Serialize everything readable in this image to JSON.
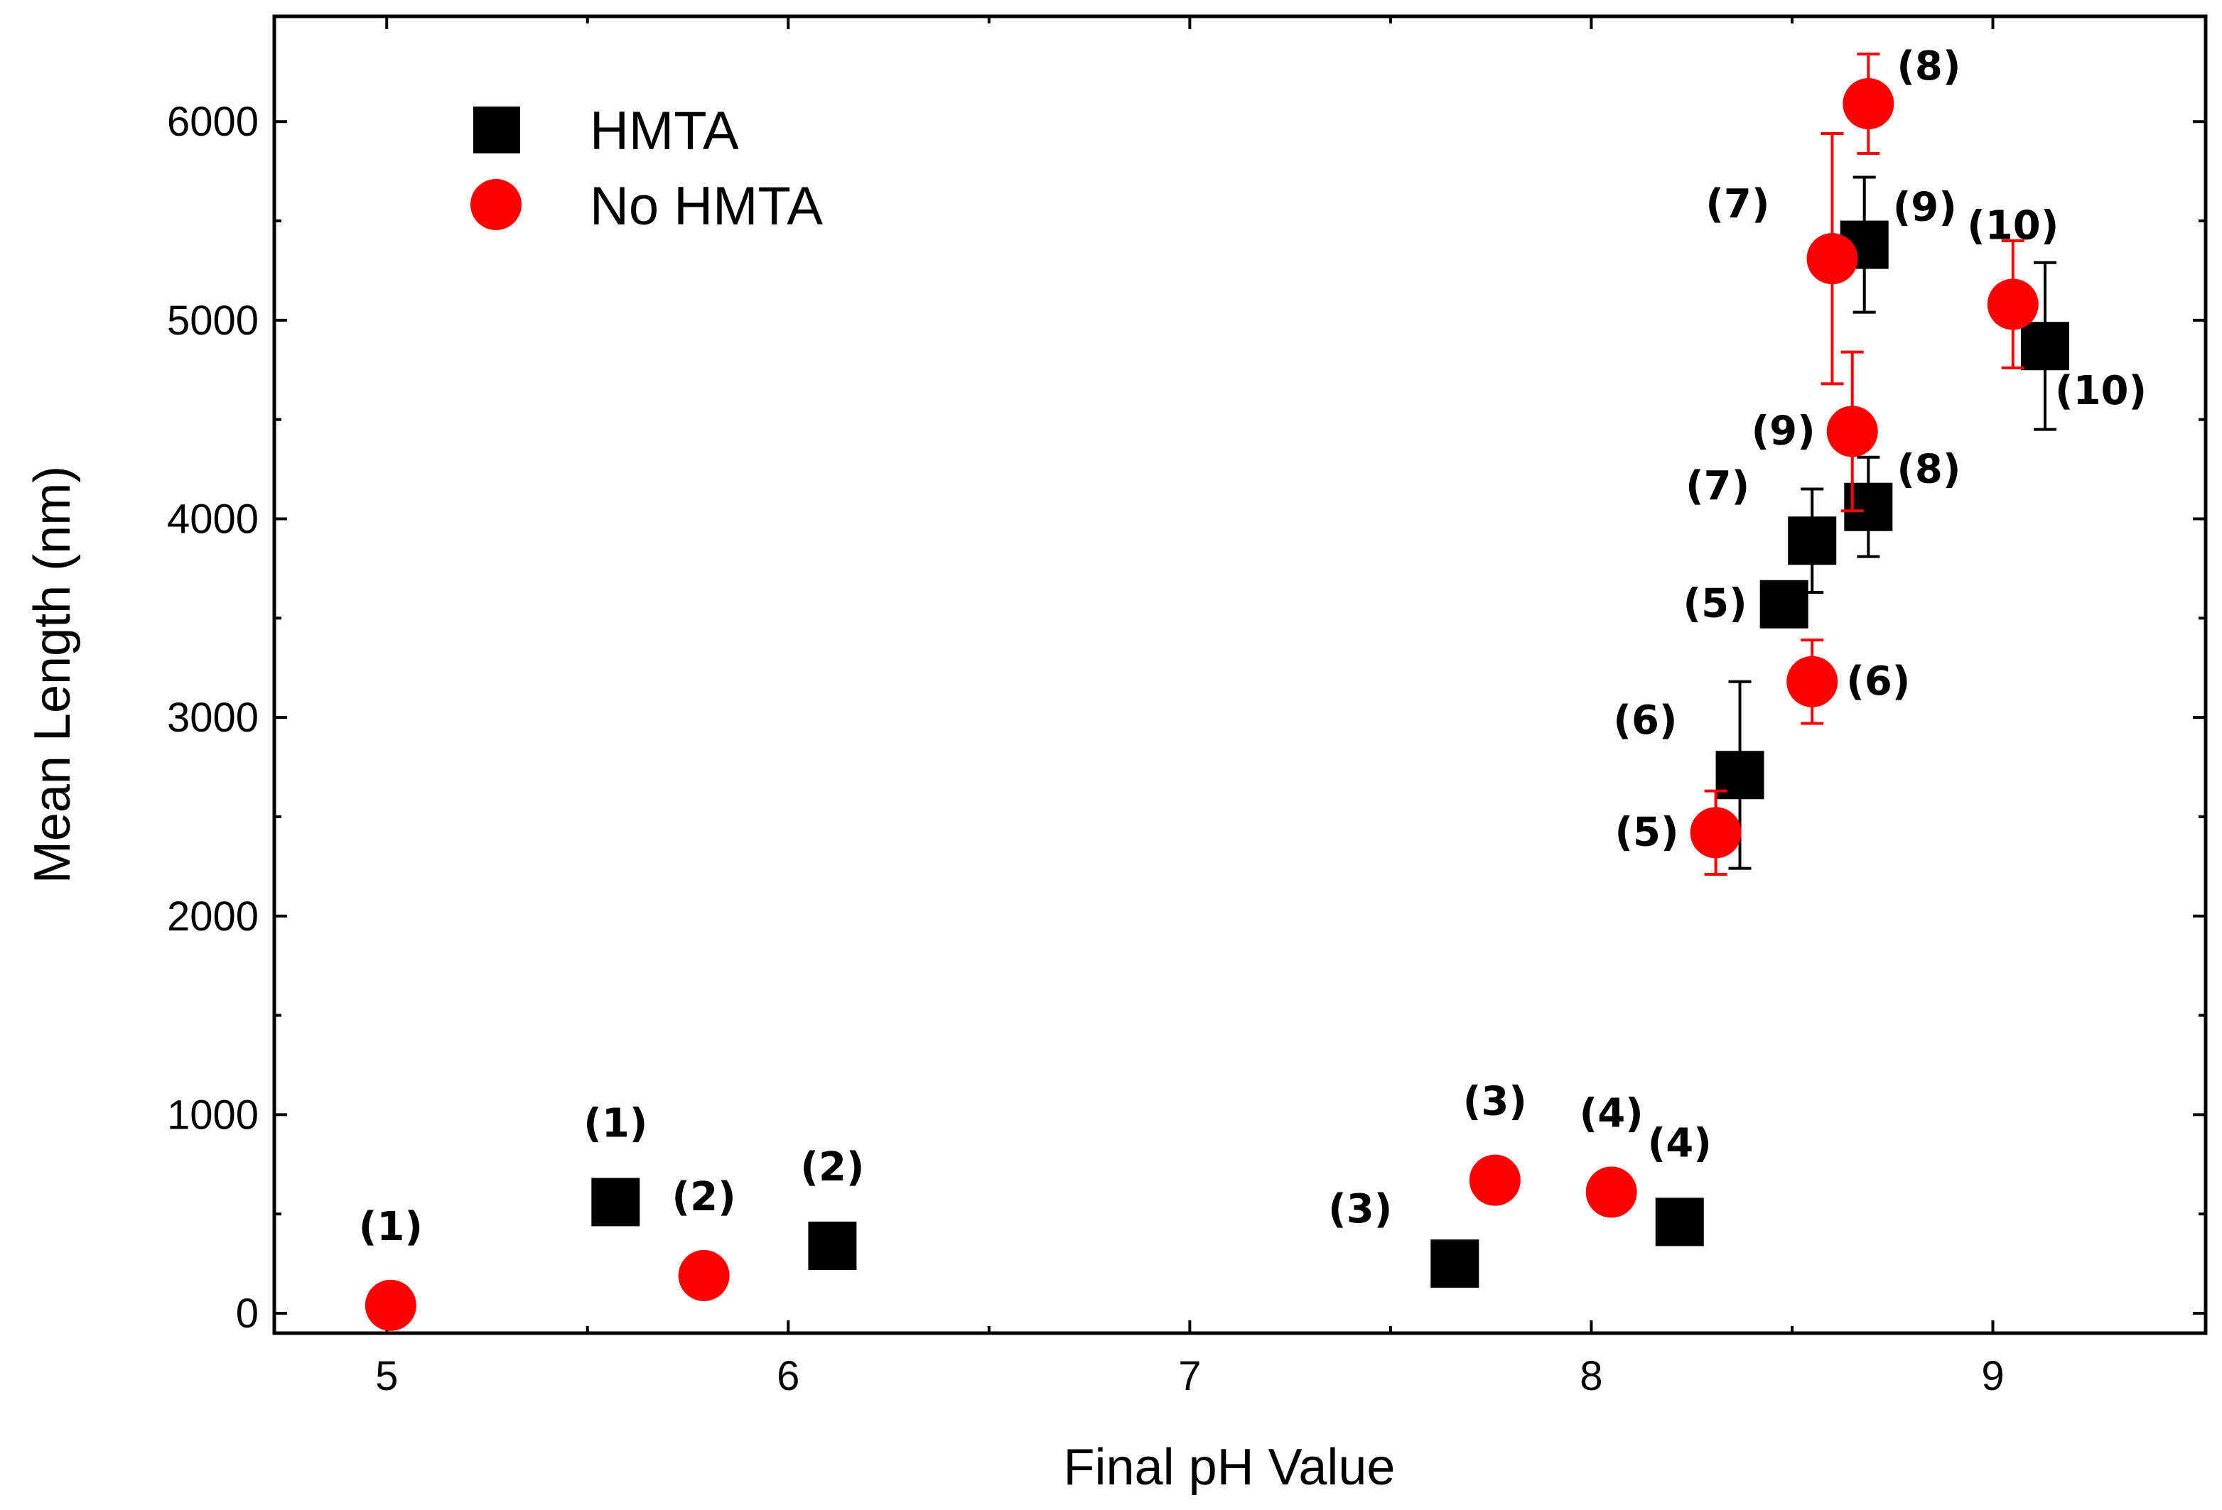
{
  "chart_data": {
    "type": "scatter",
    "title": "",
    "xlabel": "Final pH Value",
    "ylabel": "Mean Length (nm)",
    "xlim": [
      4.72,
      9.53
    ],
    "ylim": [
      -100,
      6530
    ],
    "xticks": [
      5,
      6,
      7,
      8,
      9
    ],
    "yticks": [
      0,
      1000,
      2000,
      3000,
      4000,
      5000,
      6000
    ],
    "x_minor_ticks": [
      5.5,
      6.5,
      7.5,
      8.5
    ],
    "grid": false,
    "legend_position": "top-left",
    "colors": {
      "hmta": "#000000",
      "no_hmta": "#ff0000",
      "axis": "#000000"
    },
    "series": [
      {
        "name": "HMTA",
        "marker": "square",
        "color": "#000000",
        "points": [
          {
            "x": 5.57,
            "y": 560,
            "err": 30,
            "label": "(1)",
            "label_pos": "above"
          },
          {
            "x": 6.11,
            "y": 340,
            "err": 25,
            "label": "(2)",
            "label_pos": "above"
          },
          {
            "x": 7.66,
            "y": 250,
            "err": 20,
            "label": "(3)",
            "label_pos": "above-left"
          },
          {
            "x": 8.22,
            "y": 460,
            "err": 25,
            "label": "(4)",
            "label_pos": "above"
          },
          {
            "x": 8.48,
            "y": 3570,
            "err": 50,
            "label": "(5)",
            "label_pos": "left"
          },
          {
            "x": 8.37,
            "y": 2710,
            "err": 470,
            "label": "(6)",
            "label_pos": "above-left"
          },
          {
            "x": 8.55,
            "y": 3890,
            "err": 260,
            "label": "(7)",
            "label_pos": "above-left"
          },
          {
            "x": 8.69,
            "y": 4060,
            "err": 250,
            "label": "(8)",
            "label_pos": "above-right"
          },
          {
            "x": 8.68,
            "y": 5380,
            "err": 340,
            "label": "(9)",
            "label_pos": "above-right"
          },
          {
            "x": 9.13,
            "y": 4870,
            "err": 420,
            "label": "(10)",
            "label_pos": "below-right"
          }
        ]
      },
      {
        "name": "No HMTA",
        "marker": "circle",
        "color": "#ff0000",
        "points": [
          {
            "x": 5.01,
            "y": 40,
            "err": 20,
            "label": "(1)",
            "label_pos": "above"
          },
          {
            "x": 5.79,
            "y": 190,
            "err": 40,
            "label": "(2)",
            "label_pos": "above"
          },
          {
            "x": 7.76,
            "y": 670,
            "err": 40,
            "label": "(3)",
            "label_pos": "above"
          },
          {
            "x": 8.05,
            "y": 610,
            "err": 50,
            "label": "(4)",
            "label_pos": "above"
          },
          {
            "x": 8.31,
            "y": 2420,
            "err": 210,
            "label": "(5)",
            "label_pos": "left"
          },
          {
            "x": 8.55,
            "y": 3180,
            "err": 210,
            "label": "(6)",
            "label_pos": "right"
          },
          {
            "x": 8.6,
            "y": 5310,
            "err": 630,
            "label": "(7)",
            "label_pos": "above-left"
          },
          {
            "x": 8.69,
            "y": 6090,
            "err": 250,
            "label": "(8)",
            "label_pos": "above-right"
          },
          {
            "x": 8.65,
            "y": 4440,
            "err": 400,
            "label": "(9)",
            "label_pos": "left"
          },
          {
            "x": 9.05,
            "y": 5080,
            "err": 320,
            "label": "(10)",
            "label_pos": "above"
          }
        ]
      }
    ],
    "legend": [
      {
        "label": "HMTA",
        "marker": "square"
      },
      {
        "label": "No HMTA",
        "marker": "circle"
      }
    ]
  }
}
